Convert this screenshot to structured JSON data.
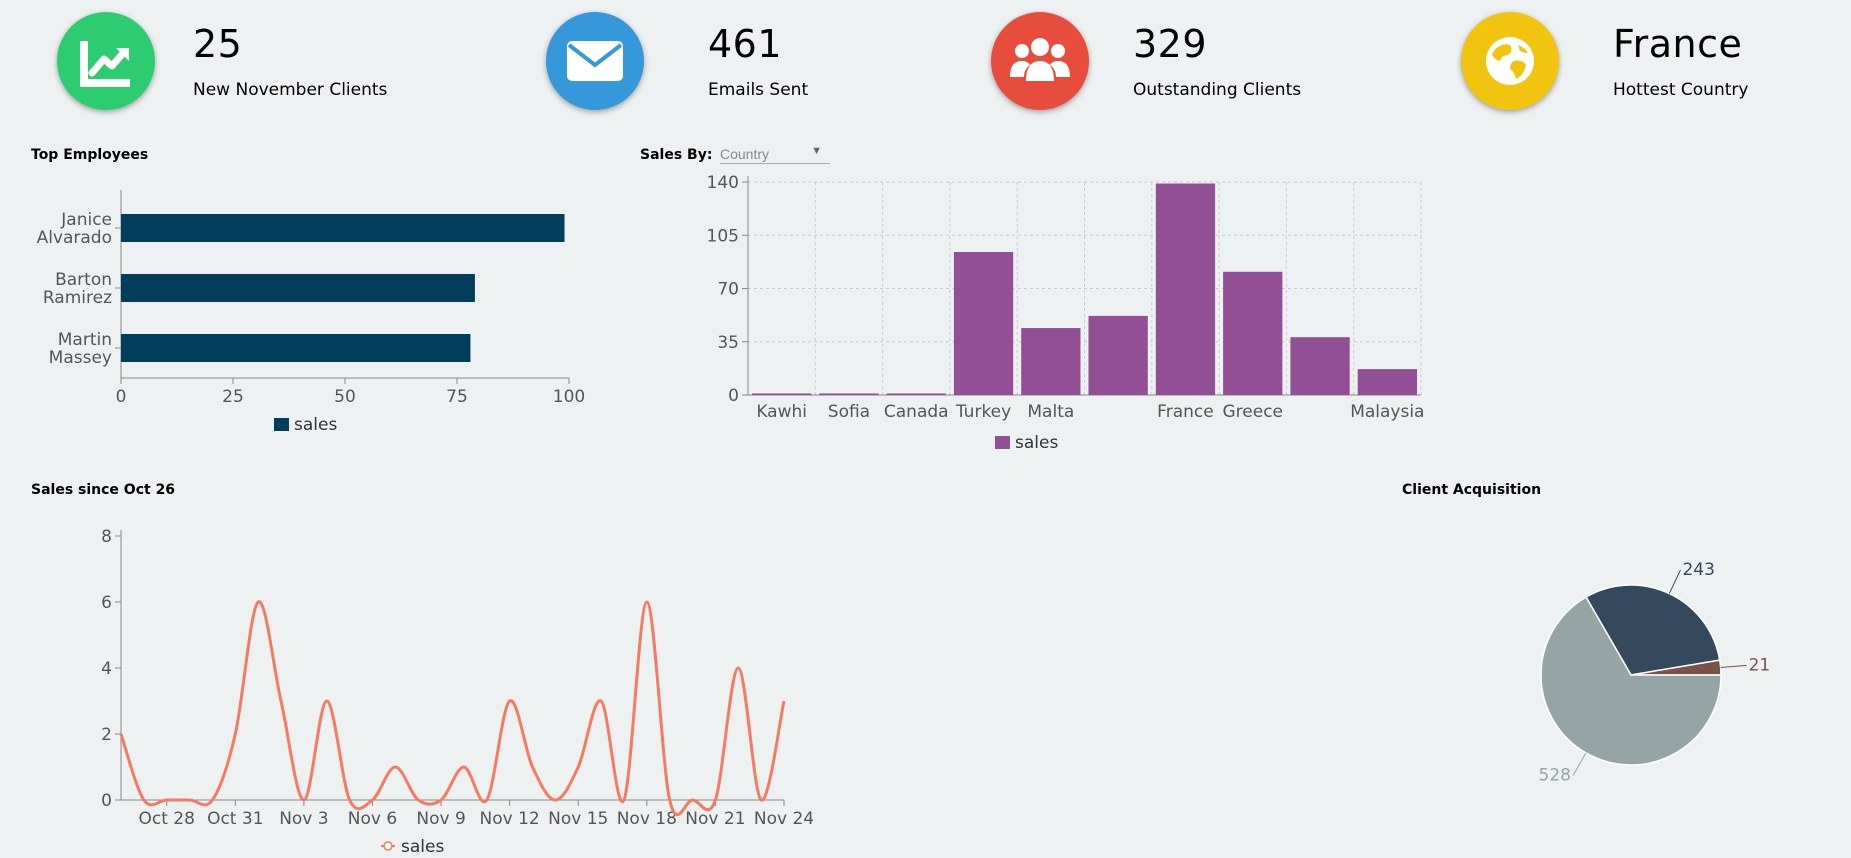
{
  "kpis": [
    {
      "value": "25",
      "label": "New November Clients",
      "icon": "trending-up-icon",
      "color": "#2ecc71"
    },
    {
      "value": "461",
      "label": "Emails Sent",
      "icon": "envelope-icon",
      "color": "#3498db"
    },
    {
      "value": "329",
      "label": "Outstanding Clients",
      "icon": "users-icon",
      "color": "#e74c3c"
    },
    {
      "value": "France",
      "label": "Hottest Country",
      "icon": "globe-icon",
      "color": "#f1c40f"
    }
  ],
  "top_employees": {
    "title": "Top Employees"
  },
  "sales_by": {
    "title": "Sales By:",
    "selected": "Country"
  },
  "sales_since": {
    "title": "Sales since Oct 26"
  },
  "client_acquisition": {
    "title": "Client Acquisition"
  },
  "chart_data": [
    {
      "type": "bar",
      "orientation": "horizontal",
      "title": "Top Employees",
      "categories": [
        [
          "Janice",
          "Alvarado"
        ],
        [
          "Barton",
          "Ramirez"
        ],
        [
          "Martin",
          "Massey"
        ]
      ],
      "series": [
        {
          "name": "sales",
          "values": [
            99,
            79,
            78
          ]
        }
      ],
      "xlim": [
        0,
        100
      ],
      "ticks": [
        0,
        25,
        50,
        75,
        100
      ],
      "color": "#023d5b",
      "legend": "bottom"
    },
    {
      "type": "bar",
      "title": "Sales By: Country",
      "categories": [
        "Kawhi",
        "Sofia",
        "Canada",
        "Turkey",
        "Malta",
        "",
        "France",
        "Greece",
        "",
        "Malaysia"
      ],
      "series": [
        {
          "name": "sales",
          "values": [
            1,
            1,
            1,
            94,
            44,
            52,
            139,
            81,
            38,
            17
          ]
        }
      ],
      "ylim": [
        0,
        140
      ],
      "ticks": [
        0,
        35,
        70,
        105,
        140
      ],
      "grid": true,
      "color": "#924f96",
      "legend": "bottom"
    },
    {
      "type": "line",
      "title": "Sales since Oct 26",
      "x_labels": [
        "Oct 28",
        "Oct 31",
        "Nov 3",
        "Nov 6",
        "Nov 9",
        "Nov 12",
        "Nov 15",
        "Nov 18",
        "Nov 21",
        "Nov 24"
      ],
      "x_label_index": [
        2,
        5,
        8,
        11,
        14,
        17,
        20,
        23,
        26,
        29
      ],
      "series": [
        {
          "name": "sales",
          "values": [
            2,
            0,
            0,
            0,
            0,
            2,
            6,
            3,
            0,
            3,
            0,
            0,
            1,
            0,
            0,
            1,
            0,
            3,
            1,
            0,
            1,
            3,
            0,
            6,
            0,
            0,
            0,
            4,
            0,
            3
          ]
        }
      ],
      "ylim": [
        0,
        8
      ],
      "ticks": [
        0,
        2,
        4,
        6,
        8
      ],
      "color": "#f47b62",
      "legend": "bottom"
    },
    {
      "type": "pie",
      "title": "Client Acquisition",
      "labels": [
        "243",
        "21",
        "528"
      ],
      "values": [
        243,
        21,
        528
      ],
      "colors": [
        "#34495e",
        "#7a5248",
        "#95a5a6"
      ]
    }
  ]
}
